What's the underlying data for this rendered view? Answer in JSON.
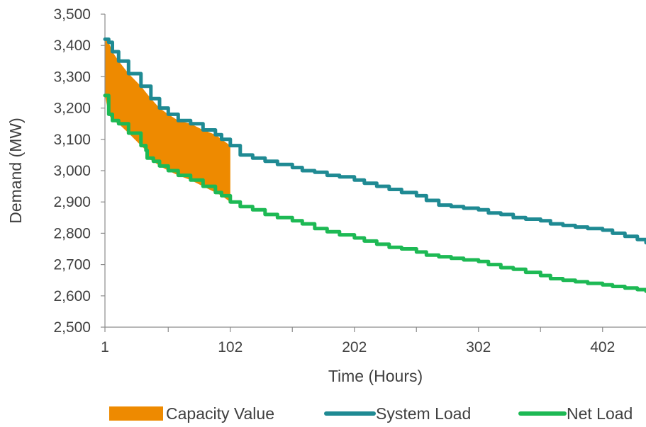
{
  "chart_data": {
    "type": "line",
    "title": "",
    "xlabel": "Time (Hours)",
    "ylabel": "Demand (MW)",
    "xlim": [
      1,
      437
    ],
    "ylim": [
      2500,
      3500
    ],
    "y_ticks": [
      "2,500",
      "2,600",
      "2,700",
      "2,800",
      "2,900",
      "3,000",
      "3,100",
      "3,200",
      "3,300",
      "3,400",
      "3,500"
    ],
    "y_tick_values": [
      2500,
      2600,
      2700,
      2800,
      2900,
      3000,
      3100,
      3200,
      3300,
      3400,
      3500
    ],
    "x_ticks": [
      "1",
      "102",
      "202",
      "302",
      "402"
    ],
    "x_tick_values": [
      1,
      102,
      202,
      302,
      402
    ],
    "x_minor_ticks": [
      52,
      152,
      252,
      352
    ],
    "grid": false,
    "legend_position": "bottom",
    "series": [
      {
        "name": "System Load",
        "color": "#1F8A93",
        "x": [
          1,
          4,
          7,
          12,
          20,
          30,
          38,
          45,
          52,
          60,
          70,
          80,
          90,
          95,
          102,
          110,
          120,
          130,
          140,
          152,
          160,
          170,
          180,
          190,
          202,
          210,
          220,
          230,
          240,
          252,
          260,
          270,
          280,
          290,
          302,
          310,
          320,
          330,
          340,
          352,
          360,
          370,
          380,
          390,
          402,
          410,
          420,
          430,
          437
        ],
        "values": [
          3420,
          3410,
          3380,
          3350,
          3310,
          3270,
          3230,
          3200,
          3180,
          3160,
          3150,
          3130,
          3115,
          3100,
          3080,
          3050,
          3040,
          3030,
          3020,
          3010,
          3000,
          2995,
          2985,
          2980,
          2970,
          2960,
          2950,
          2940,
          2930,
          2920,
          2905,
          2890,
          2885,
          2880,
          2875,
          2865,
          2860,
          2850,
          2845,
          2840,
          2830,
          2825,
          2820,
          2815,
          2810,
          2800,
          2790,
          2780,
          2770
        ]
      },
      {
        "name": "Net Load",
        "color": "#1DB954",
        "x": [
          1,
          4,
          7,
          12,
          20,
          30,
          34,
          35,
          40,
          45,
          52,
          60,
          70,
          80,
          90,
          95,
          102,
          110,
          120,
          130,
          140,
          152,
          160,
          170,
          180,
          190,
          202,
          210,
          220,
          230,
          240,
          252,
          260,
          270,
          280,
          290,
          302,
          310,
          320,
          330,
          340,
          352,
          360,
          370,
          380,
          390,
          402,
          410,
          420,
          430,
          437
        ],
        "values": [
          3240,
          3180,
          3160,
          3150,
          3120,
          3080,
          3065,
          3040,
          3030,
          3015,
          3000,
          2985,
          2970,
          2950,
          2930,
          2920,
          2900,
          2885,
          2875,
          2860,
          2850,
          2840,
          2830,
          2815,
          2805,
          2795,
          2785,
          2775,
          2765,
          2755,
          2750,
          2740,
          2730,
          2725,
          2720,
          2715,
          2710,
          2700,
          2690,
          2685,
          2675,
          2665,
          2655,
          2650,
          2645,
          2640,
          2635,
          2630,
          2625,
          2620,
          2615
        ]
      }
    ],
    "fill": {
      "name": "Capacity Value",
      "color": "#EE8A00",
      "x_range": [
        1,
        102
      ],
      "between": [
        "Net Load",
        "System Load"
      ]
    },
    "legend": [
      "Capacity Value",
      "System Load",
      "Net Load"
    ]
  }
}
